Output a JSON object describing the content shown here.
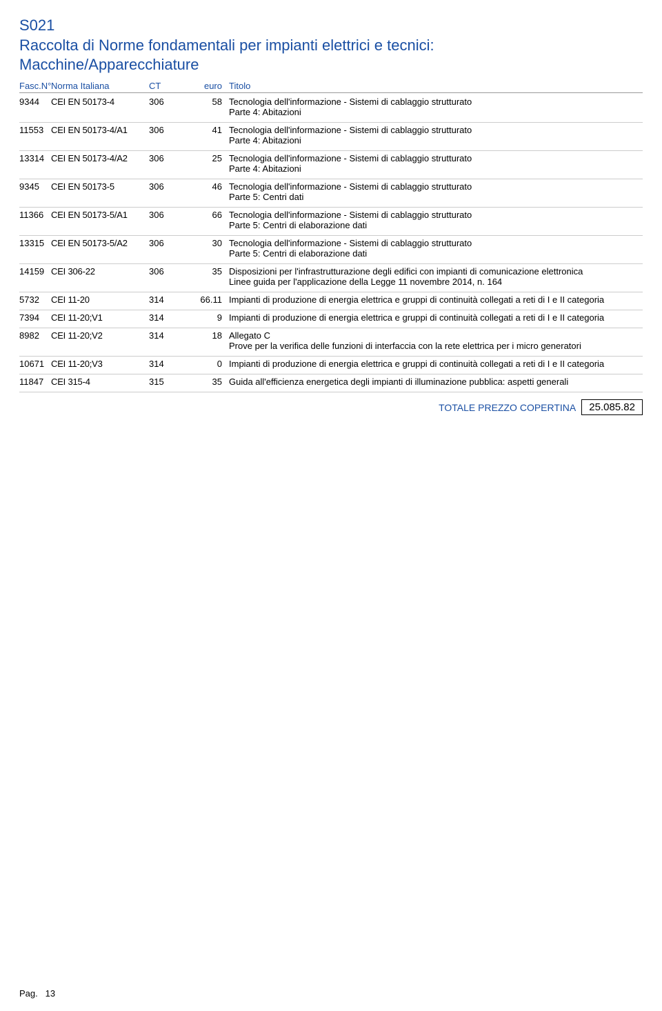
{
  "header": {
    "code": "S021",
    "title_line1": "Raccolta di Norme fondamentali per impianti elettrici e tecnici:",
    "title_line2": "Macchine/Apparecchiature"
  },
  "columns": {
    "fasc": "Fasc.N°",
    "norma": "Norma Italiana",
    "ct": "CT",
    "euro": "euro",
    "titolo": "Titolo"
  },
  "rows": [
    {
      "fasc": "9344",
      "norma": "CEI EN 50173-4",
      "ct": "306",
      "euro": "58",
      "titolo": "Tecnologia dell'informazione - Sistemi di cablaggio strutturato",
      "sub": "Parte 4: Abitazioni"
    },
    {
      "fasc": "11553",
      "norma": "CEI EN 50173-4/A1",
      "ct": "306",
      "euro": "41",
      "titolo": "Tecnologia dell'informazione - Sistemi di cablaggio strutturato",
      "sub": "Parte 4: Abitazioni"
    },
    {
      "fasc": "13314",
      "norma": "CEI EN 50173-4/A2",
      "ct": "306",
      "euro": "25",
      "titolo": "Tecnologia dell'informazione - Sistemi di cablaggio strutturato",
      "sub": "Parte 4: Abitazioni"
    },
    {
      "fasc": "9345",
      "norma": "CEI EN 50173-5",
      "ct": "306",
      "euro": "46",
      "titolo": "Tecnologia dell'informazione - Sistemi di cablaggio strutturato",
      "sub": "Parte 5: Centri dati"
    },
    {
      "fasc": "11366",
      "norma": "CEI EN 50173-5/A1",
      "ct": "306",
      "euro": "66",
      "titolo": "Tecnologia dell'informazione - Sistemi di cablaggio strutturato",
      "sub": "Parte 5: Centri di elaborazione dati"
    },
    {
      "fasc": "13315",
      "norma": "CEI EN 50173-5/A2",
      "ct": "306",
      "euro": "30",
      "titolo": "Tecnologia dell'informazione - Sistemi di cablaggio strutturato",
      "sub": "Parte 5: Centri di elaborazione dati"
    },
    {
      "fasc": "14159",
      "norma": "CEI 306-22",
      "ct": "306",
      "euro": "35",
      "titolo": "Disposizioni per l'infrastrutturazione degli edifici con impianti di comunicazione elettronica",
      "sub": "Linee guida per l'applicazione della Legge 11 novembre 2014, n. 164"
    },
    {
      "fasc": "5732",
      "norma": "CEI 11-20",
      "ct": "314",
      "euro": "66.11",
      "titolo": "Impianti di produzione di energia elettrica e gruppi di continuità collegati a reti di I e II categoria",
      "sub": ""
    },
    {
      "fasc": "7394",
      "norma": "CEI 11-20;V1",
      "ct": "314",
      "euro": "9",
      "titolo": "Impianti di produzione di energia elettrica e gruppi di continuità collegati a reti di I e II categoria",
      "sub": ""
    },
    {
      "fasc": "8982",
      "norma": "CEI 11-20;V2",
      "ct": "314",
      "euro": "18",
      "titolo": "Allegato C",
      "sub": "Prove per la verifica delle funzioni di interfaccia con la rete elettrica per i micro generatori"
    },
    {
      "fasc": "10671",
      "norma": "CEI 11-20;V3",
      "ct": "314",
      "euro": "0",
      "titolo": "Impianti di produzione di energia elettrica e gruppi di continuità collegati a reti di I e II categoria",
      "sub": ""
    },
    {
      "fasc": "11847",
      "norma": "CEI 315-4",
      "ct": "315",
      "euro": "35",
      "titolo": "Guida all'efficienza energetica degli impianti di illuminazione pubblica: aspetti generali",
      "sub": ""
    }
  ],
  "total": {
    "label": "TOTALE PREZZO COPERTINA",
    "value": "25.085.82"
  },
  "footer": {
    "page_label": "Pag.",
    "page_number": "13"
  },
  "colors": {
    "accent": "#1a4fa3",
    "text": "#000000",
    "rule": "#cccccc"
  }
}
